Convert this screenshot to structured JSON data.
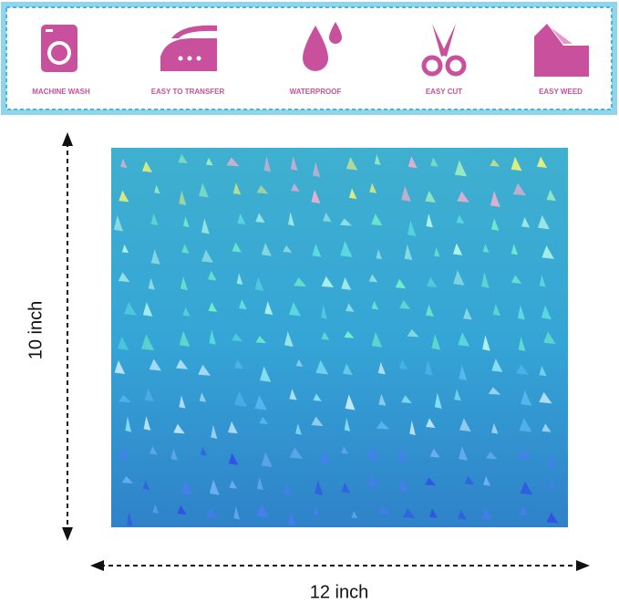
{
  "features": [
    {
      "label": "MACHINE WASH"
    },
    {
      "label": "EASY TO TRANSFER"
    },
    {
      "label": "WATERPROOF"
    },
    {
      "label": "EASY CUT"
    },
    {
      "label": "EASY WEED"
    }
  ],
  "dimensions": {
    "height": "10 inch",
    "width": "12 inch"
  }
}
